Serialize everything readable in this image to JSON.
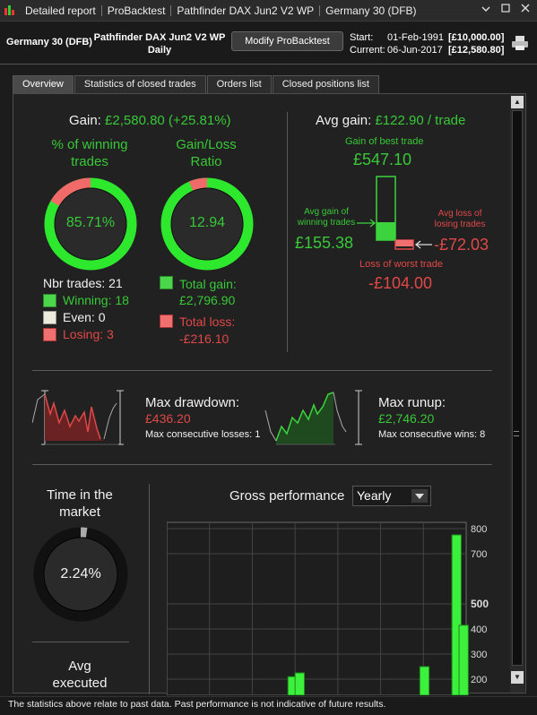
{
  "titlebar": {
    "items": [
      "Detailed report",
      "ProBacktest",
      "Pathfinder DAX Jun2 V2 WP",
      "Germany 30 (DFB)"
    ],
    "icons": [
      "dropdown-arrow-icon",
      "restore-icon",
      "close-icon"
    ]
  },
  "header": {
    "instrument": "Germany 30 (DFB)",
    "strategy_name": "Pathfinder DAX Jun2 V2 WP",
    "timeframe": "Daily",
    "modify_button": "Modify ProBacktest",
    "start_label": "Start:",
    "start_date": "01-Feb-1991",
    "start_capital": "[£10,000.00]",
    "current_label": "Current:",
    "current_date": "06-Jun-2017",
    "current_capital": "[£12,580.80]"
  },
  "tabs": [
    "Overview",
    "Statistics of closed trades",
    "Orders list",
    "Closed positions list"
  ],
  "overview": {
    "gain_label": "Gain:",
    "gain_value": "£2,580.80 (+25.81%)",
    "winning_title_1": "% of winning",
    "winning_title_2": "trades",
    "winning_pct": "85.71%",
    "ratio_title_1": "Gain/Loss",
    "ratio_title_2": "Ratio",
    "ratio_value": "12.94",
    "nbr_trades": "Nbr trades: 21",
    "winning": "Winning: 18",
    "even": "Even: 0",
    "losing": "Losing: 3",
    "total_gain_label": "Total gain:",
    "total_gain": "£2,796.90",
    "total_loss_label": "Total loss:",
    "total_loss": "-£216.10",
    "avg_gain_label": "Avg gain:",
    "avg_gain_value": "£122.90 / trade",
    "best_trade_label": "Gain of best trade",
    "best_trade": "£547.10",
    "avg_win_label_1": "Avg gain of",
    "avg_win_label_2": "winning trades",
    "avg_win": "£155.38",
    "avg_loss_label_1": "Avg loss of",
    "avg_loss_label_2": "losing trades",
    "avg_loss": "-£72.03",
    "worst_trade_label": "Loss of worst trade",
    "worst_trade": "-£104.00",
    "max_drawdown_label": "Max drawdown:",
    "max_drawdown": "£436.20",
    "max_consec_losses": "Max consecutive losses: 1",
    "max_runup_label": "Max runup:",
    "max_runup": "£2,746.20",
    "max_consec_wins": "Max consecutive wins: 8",
    "time_in_market_1": "Time in the",
    "time_in_market_2": "market",
    "time_in_market": "2.24%",
    "avg_executed_1": "Avg",
    "avg_executed_2": "executed",
    "gross_performance_label": "Gross performance",
    "period_select": "Yearly"
  },
  "colors": {
    "green": "#38c838",
    "red": "#e04848",
    "bright_green": "#4cff3a"
  },
  "chart_data": {
    "type": "bar",
    "title": "Gross performance",
    "yticks": [
      800,
      700,
      500,
      400,
      300,
      200
    ],
    "ylim": [
      200,
      800
    ],
    "values": [
      0,
      0,
      0,
      0,
      0,
      0,
      0,
      0,
      0,
      0,
      0,
      0,
      0,
      0,
      0,
      0,
      0,
      0,
      0,
      0,
      0,
      0,
      0,
      0,
      0,
      0,
      0,
      0,
      0,
      0,
      0,
      0,
      0,
      210,
      0,
      225,
      0,
      0,
      0,
      0,
      0,
      0,
      0,
      0,
      0,
      0,
      0,
      0,
      0,
      0,
      0,
      0,
      0,
      0,
      0,
      0,
      0,
      0,
      0,
      0,
      0,
      0,
      0,
      0,
      0,
      0,
      0,
      0,
      0,
      0,
      250,
      0,
      0,
      0,
      0,
      0,
      0,
      0,
      0,
      775,
      0,
      415
    ]
  },
  "footer": "The statistics above relate to past data. Past performance is not indicative of future results."
}
